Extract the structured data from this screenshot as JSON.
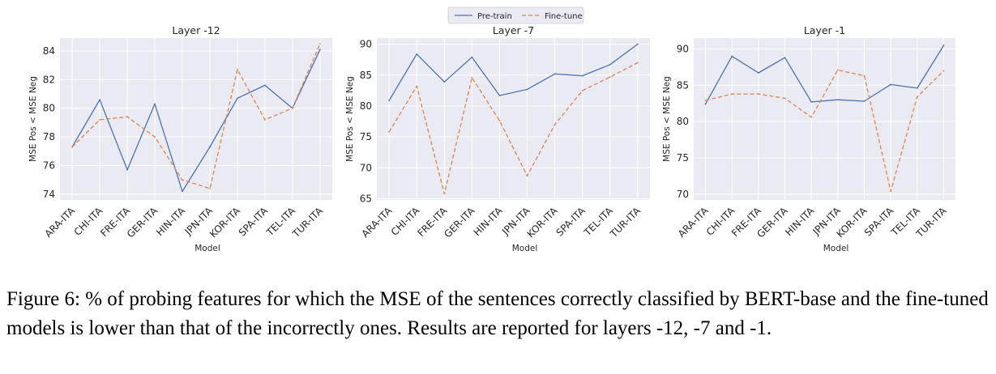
{
  "legend": {
    "series": [
      "Pre-train",
      "Fine-tune"
    ]
  },
  "colors": {
    "pretrain": "#4c72b0",
    "finetune": "#dd8452",
    "panel_bg": "#eaeaf2",
    "grid": "#ffffff"
  },
  "caption": "Figure 6: % of probing features for which the MSE of the sentences correctly classified by BERT-base and the fine-tuned models is lower than that of the incorrectly ones. Results are reported for layers -12, -7 and -1.",
  "chart_data": [
    {
      "type": "line",
      "title": "Layer -12",
      "xlabel": "Model",
      "ylabel": "MSE Pos < MSE Neg",
      "categories": [
        "ARA-ITA",
        "CHI-ITA",
        "FRE-ITA",
        "GER-ITA",
        "HIN-ITA",
        "JPN-ITA",
        "KOR-ITA",
        "SPA-ITA",
        "TEL-ITA",
        "TUR-ITA"
      ],
      "ylim": [
        73.6,
        84.9
      ],
      "yticks": [
        74,
        76,
        78,
        80,
        82,
        84
      ],
      "series": [
        {
          "name": "Pre-train",
          "values": [
            77.3,
            80.6,
            75.7,
            80.3,
            74.2,
            77.3,
            80.7,
            81.6,
            80.0,
            84.1
          ]
        },
        {
          "name": "Fine-tune",
          "values": [
            77.3,
            79.2,
            79.4,
            78.0,
            75.0,
            74.4,
            82.7,
            79.2,
            80.0,
            84.5
          ]
        }
      ],
      "grid": true
    },
    {
      "type": "line",
      "title": "Layer -7",
      "xlabel": "Model",
      "ylabel": "MSE Pos < MSE Neg",
      "categories": [
        "ARA-ITA",
        "CHI-ITA",
        "FRE-ITA",
        "GER-ITA",
        "HIN-ITA",
        "JPN-ITA",
        "KOR-ITA",
        "SPA-ITA",
        "TEL-ITA",
        "TUR-ITA"
      ],
      "ylim": [
        64.8,
        91.0
      ],
      "yticks": [
        65,
        70,
        75,
        80,
        85,
        90
      ],
      "series": [
        {
          "name": "Pre-train",
          "values": [
            80.9,
            88.4,
            83.9,
            87.9,
            81.7,
            82.7,
            85.2,
            84.9,
            86.7,
            90.0
          ]
        },
        {
          "name": "Fine-tune",
          "values": [
            75.8,
            83.2,
            65.8,
            84.6,
            77.6,
            68.7,
            77.0,
            82.5,
            84.7,
            87.0
          ]
        }
      ],
      "grid": true
    },
    {
      "type": "line",
      "title": "Layer -1",
      "xlabel": "Model",
      "ylabel": "MSE Pos < MSE Neg",
      "categories": [
        "ARA-ITA",
        "CHI-ITA",
        "FRE-ITA",
        "GER-ITA",
        "HIN-ITA",
        "JPN-ITA",
        "KOR-ITA",
        "SPA-ITA",
        "TEL-ITA",
        "TUR-ITA"
      ],
      "ylim": [
        69.2,
        91.5
      ],
      "yticks": [
        70,
        75,
        80,
        85,
        90
      ],
      "series": [
        {
          "name": "Pre-train",
          "values": [
            82.4,
            89.0,
            86.7,
            88.8,
            82.7,
            83.0,
            82.8,
            85.1,
            84.6,
            90.5
          ]
        },
        {
          "name": "Fine-tune",
          "values": [
            82.9,
            83.8,
            83.8,
            83.2,
            80.6,
            87.1,
            86.3,
            70.4,
            83.4,
            87.0
          ]
        }
      ],
      "grid": true
    }
  ]
}
